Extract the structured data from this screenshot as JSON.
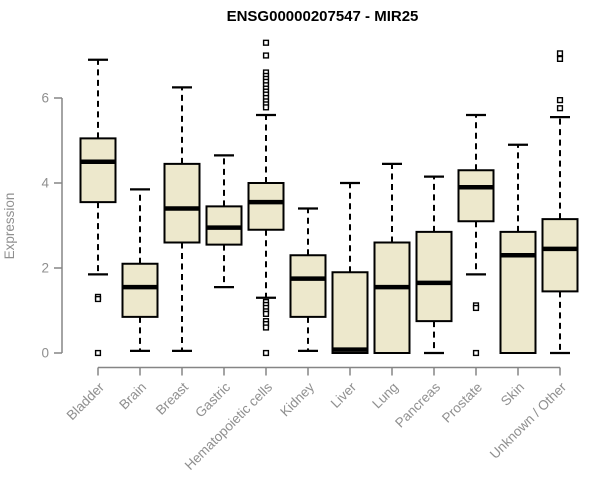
{
  "title": "ENSG00000207547 - MIR25",
  "chart_data": {
    "type": "boxplot",
    "title": "ENSG00000207547 - MIR25",
    "xlabel": "",
    "ylabel": "Expression",
    "ylim": [
      0,
      7.45
    ],
    "y_ticks": [
      0,
      2,
      4,
      6
    ],
    "grid": "off",
    "box_fill": "#EDE8CC",
    "box_stroke": "#000000",
    "axis_color": "#858585",
    "label_color": "#8F8F8F",
    "categories": [
      "Bladder",
      "Brain",
      "Breast",
      "Gastric",
      "Hematopoietic cells",
      "Kidney",
      "Liver",
      "Lung",
      "Pancreas",
      "Prostate",
      "Skin",
      "Unknown / Other"
    ],
    "boxes": [
      {
        "label": "Bladder",
        "whisker_low": 1.85,
        "q1": 3.55,
        "median": 4.5,
        "q3": 5.05,
        "whisker_high": 6.9,
        "outliers": [
          1.32,
          1.27,
          0
        ]
      },
      {
        "label": "Brain",
        "whisker_low": 0.05,
        "q1": 0.85,
        "median": 1.55,
        "q3": 2.1,
        "whisker_high": 3.85,
        "outliers": []
      },
      {
        "label": "Breast",
        "whisker_low": 0.05,
        "q1": 2.6,
        "median": 3.4,
        "q3": 4.45,
        "whisker_high": 6.25,
        "outliers": []
      },
      {
        "label": "Gastric",
        "whisker_low": 1.55,
        "q1": 2.55,
        "median": 2.95,
        "q3": 3.45,
        "whisker_high": 4.65,
        "outliers": []
      },
      {
        "label": "Hematopoietic cells",
        "whisker_low": 1.3,
        "q1": 2.9,
        "median": 3.55,
        "q3": 4.0,
        "whisker_high": 5.6,
        "outliers": [
          7.3,
          7.0,
          6.6,
          6.52,
          6.45,
          6.38,
          6.3,
          6.22,
          6.15,
          6.08,
          6.0,
          5.92,
          5.85,
          5.78,
          1.2,
          1.13,
          1.06,
          0.98,
          0.92,
          0.75,
          0.68,
          0.6,
          0
        ]
      },
      {
        "label": "Kidney",
        "whisker_low": 0.05,
        "q1": 0.85,
        "median": 1.75,
        "q3": 2.3,
        "whisker_high": 3.4,
        "outliers": []
      },
      {
        "label": "Liver",
        "whisker_low": 0,
        "q1": 0,
        "median": 0.08,
        "q3": 1.9,
        "whisker_high": 4.0,
        "outliers": []
      },
      {
        "label": "Lung",
        "whisker_low": 0,
        "q1": 0,
        "median": 1.55,
        "q3": 2.6,
        "whisker_high": 4.45,
        "outliers": []
      },
      {
        "label": "Pancreas",
        "whisker_low": 0,
        "q1": 0.75,
        "median": 1.65,
        "q3": 2.85,
        "whisker_high": 4.15,
        "outliers": []
      },
      {
        "label": "Prostate",
        "whisker_low": 1.85,
        "q1": 3.1,
        "median": 3.9,
        "q3": 4.3,
        "whisker_high": 5.6,
        "outliers": [
          1.12,
          1.06,
          0
        ]
      },
      {
        "label": "Skin",
        "whisker_low": 0,
        "q1": 0,
        "median": 2.3,
        "q3": 2.85,
        "whisker_high": 4.9,
        "outliers": []
      },
      {
        "label": "Unknown / Other",
        "whisker_low": 0,
        "q1": 1.45,
        "median": 2.45,
        "q3": 3.15,
        "whisker_high": 5.55,
        "outliers": [
          7.05,
          6.92,
          5.95,
          5.76
        ]
      }
    ]
  }
}
